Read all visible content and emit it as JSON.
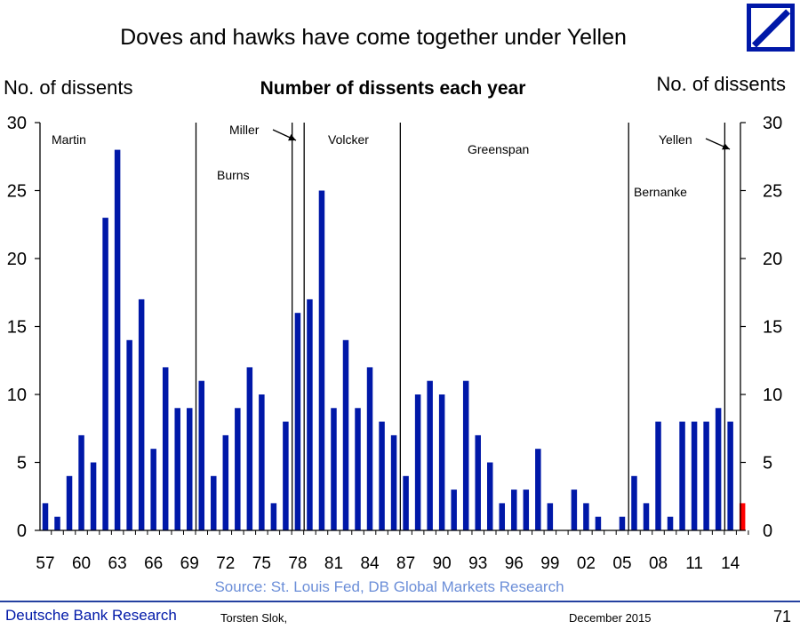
{
  "title": "Doves and hawks have come together under Yellen",
  "chart_title": "Number of dissents each year",
  "ylabel_left": "No. of dissents",
  "ylabel_right": "No. of dissents",
  "source": "Source: St. Louis Fed, DB Global Markets Research",
  "footer": {
    "brand": "Deutsche Bank Research",
    "author": "Torsten Slok,",
    "date": "December 2015",
    "page": "71"
  },
  "colors": {
    "bar": "#0018a8",
    "highlight": "#ff0000",
    "brand": "#0018a8"
  },
  "chart_data": {
    "type": "bar",
    "title": "Number of dissents each year",
    "ylabel": "No. of dissents",
    "ylim": [
      0,
      30
    ],
    "yticks": [
      0,
      5,
      10,
      15,
      20,
      25,
      30
    ],
    "x": [
      1957,
      1958,
      1959,
      1960,
      1961,
      1962,
      1963,
      1964,
      1965,
      1966,
      1967,
      1968,
      1969,
      1970,
      1971,
      1972,
      1973,
      1974,
      1975,
      1976,
      1977,
      1978,
      1979,
      1980,
      1981,
      1982,
      1983,
      1984,
      1985,
      1986,
      1987,
      1988,
      1989,
      1990,
      1991,
      1992,
      1993,
      1994,
      1995,
      1996,
      1997,
      1998,
      1999,
      2000,
      2001,
      2002,
      2003,
      2004,
      2005,
      2006,
      2007,
      2008,
      2009,
      2010,
      2011,
      2012,
      2013,
      2014,
      2015
    ],
    "values": [
      2,
      1,
      4,
      7,
      5,
      23,
      28,
      14,
      17,
      6,
      12,
      9,
      9,
      11,
      4,
      7,
      9,
      12,
      10,
      2,
      8,
      16,
      17,
      25,
      9,
      14,
      9,
      12,
      8,
      7,
      4,
      10,
      11,
      10,
      3,
      11,
      7,
      5,
      2,
      3,
      3,
      6,
      2,
      0,
      3,
      2,
      1,
      0,
      1,
      4,
      2,
      8,
      1,
      8,
      8,
      8,
      9,
      8,
      2
    ],
    "xtick_labels": [
      "57",
      "60",
      "63",
      "66",
      "69",
      "72",
      "75",
      "78",
      "81",
      "84",
      "87",
      "90",
      "93",
      "96",
      "99",
      "02",
      "05",
      "08",
      "11",
      "14"
    ],
    "xtick_years": [
      1957,
      1960,
      1963,
      1966,
      1969,
      1972,
      1975,
      1978,
      1981,
      1984,
      1987,
      1990,
      1993,
      1996,
      1999,
      2002,
      2005,
      2008,
      2011,
      2014
    ],
    "highlight_year": 2015,
    "eras": [
      {
        "label": "Martin",
        "start_line": null
      },
      {
        "label": "Burns",
        "start_line": 1970
      },
      {
        "label": "Miller",
        "start_line": 1978
      },
      {
        "label": "Volcker",
        "start_line": 1979
      },
      {
        "label": "Greenspan",
        "start_line": 1987
      },
      {
        "label": "Bernanke",
        "start_line": 2006
      },
      {
        "label": "Yellen",
        "start_line": 2014
      }
    ]
  }
}
